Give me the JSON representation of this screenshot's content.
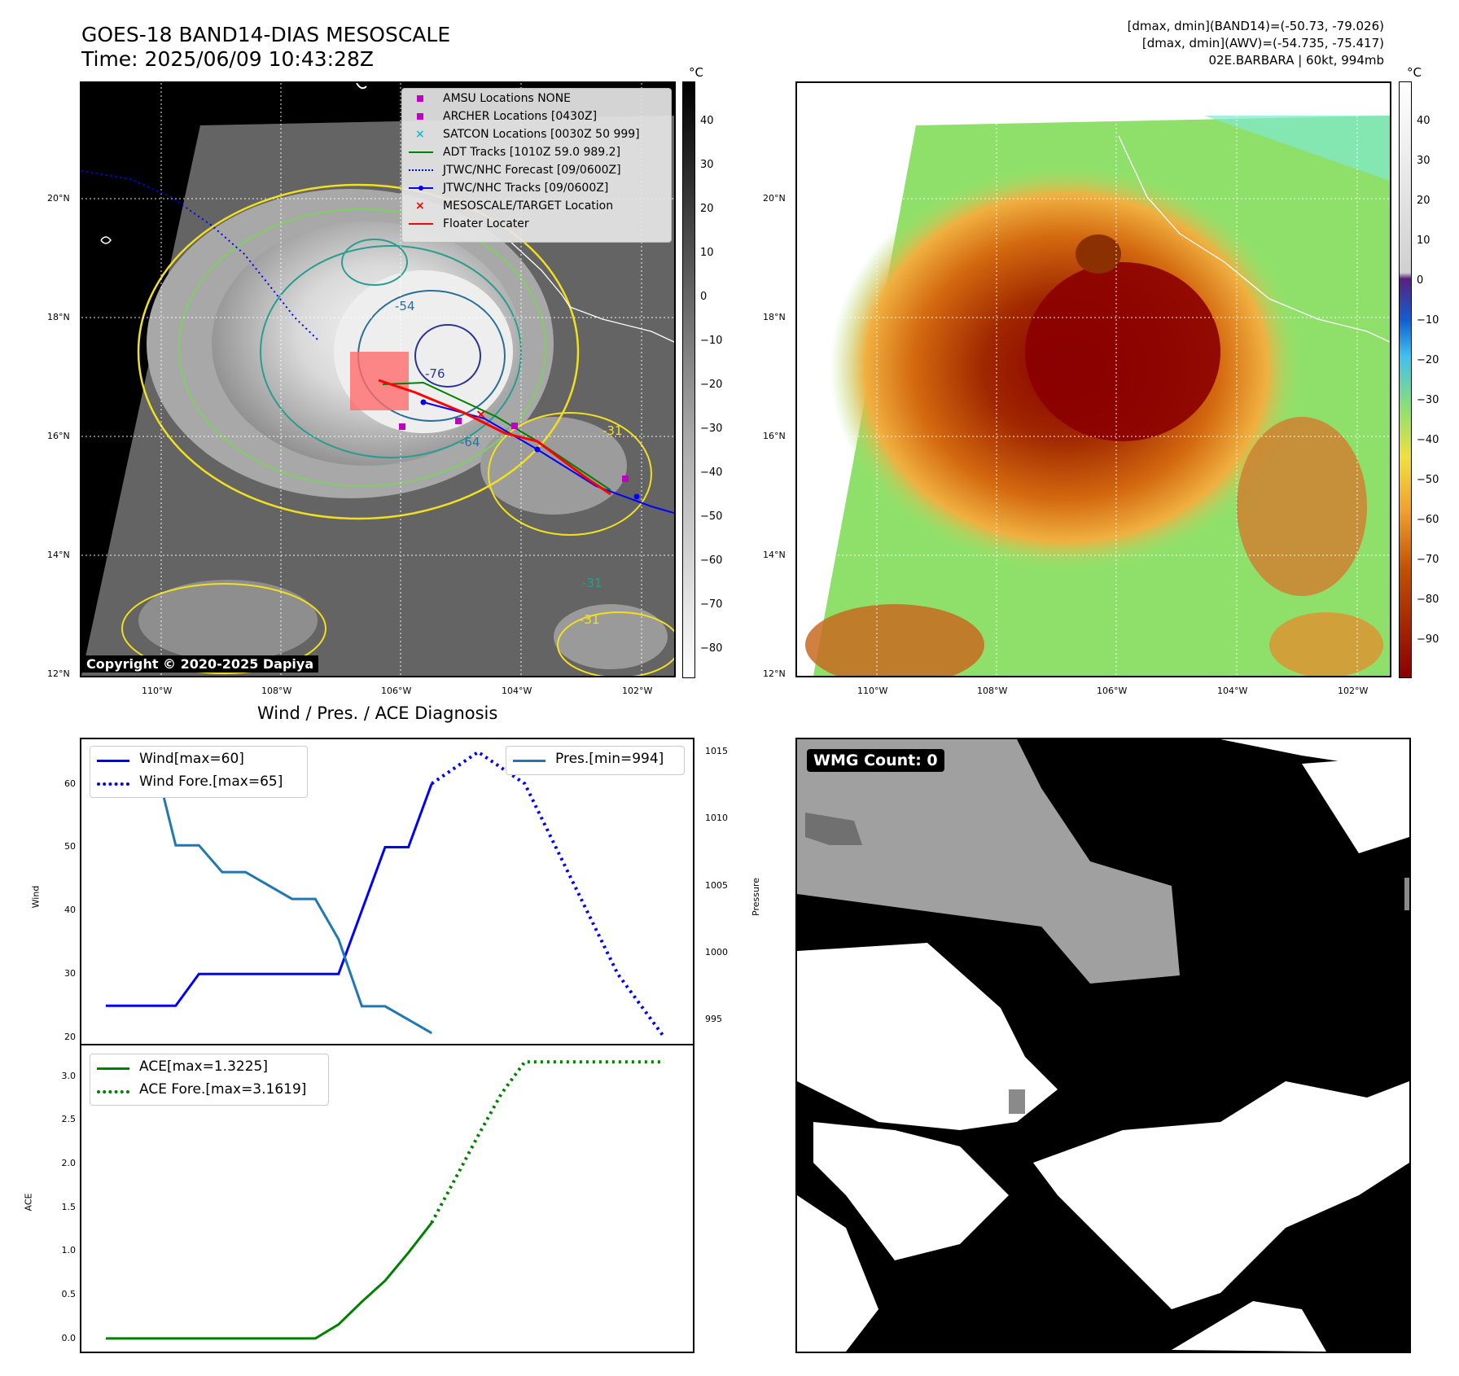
{
  "header": {
    "title_line1": "GOES-18 BAND14-DIAS MESOSCALE",
    "title_line2": "Time: 2025/06/09 10:43:28Z",
    "info_line1": "[dmax, dmin](BAND14)=(-50.73, -79.026)",
    "info_line2": "[dmax, dmin](AWV)=(-54.735, -75.417)",
    "info_line3": "02E.BARBARA | 60kt, 994mb"
  },
  "map_panel": {
    "lon_labels": [
      "110°W",
      "108°W",
      "106°W",
      "104°W",
      "102°W"
    ],
    "lat_labels": [
      "20°N",
      "18°N",
      "16°N",
      "14°N",
      "12°N"
    ],
    "copyright": "Copyright © 2020-2025 Dapiya",
    "contour_labels": [
      "-54",
      "-76",
      "-64",
      "-31",
      "-31",
      "-31"
    ],
    "legend": [
      {
        "label": "AMSU Locations NONE",
        "marker": "square",
        "color": "#c000c0"
      },
      {
        "label": "ARCHER Locations [0430Z]",
        "marker": "square",
        "color": "#c000c0"
      },
      {
        "label": "SATCON Locations [0030Z 50 999]",
        "marker": "x",
        "color": "#17becf"
      },
      {
        "label": "ADT Tracks [1010Z 59.0 989.2]",
        "marker": "line",
        "color": "#008000"
      },
      {
        "label": "JTWC/NHC Forecast [09/0600Z]",
        "marker": "dotted",
        "color": "#0000ff"
      },
      {
        "label": "JTWC/NHC Tracks [09/0600Z]",
        "marker": "line-dot",
        "color": "#0000ff"
      },
      {
        "label": "MESOSCALE/TARGET Location",
        "marker": "x",
        "color": "#ff0000"
      },
      {
        "label": "Floater Locater",
        "marker": "line",
        "color": "#ff0000"
      }
    ]
  },
  "colorbars": {
    "unit": "°C",
    "gray_ticks": [
      "40",
      "30",
      "20",
      "10",
      "0",
      "−10",
      "−20",
      "−30",
      "−40",
      "−50",
      "−60",
      "−70",
      "−80"
    ],
    "color_ticks": [
      "40",
      "30",
      "20",
      "10",
      "0",
      "−10",
      "−20",
      "−30",
      "−40",
      "−50",
      "−60",
      "−70",
      "−80",
      "−90"
    ]
  },
  "wmg_panel": {
    "badge": "WMG Count: 0"
  },
  "chart_data": [
    {
      "type": "line",
      "title": "Wind / Pres. / ACE Diagnosis",
      "ylabel": "Wind",
      "y2label": "Pressure",
      "ylim": [
        19,
        67
      ],
      "y2lim": [
        993.2,
        1015.9
      ],
      "yticks": [
        "60",
        "50",
        "40",
        "30",
        "20"
      ],
      "y2ticks": [
        "1015",
        "1010",
        "1005",
        "1000",
        "995"
      ],
      "x": [
        0,
        1,
        2,
        3,
        4,
        5,
        6,
        7,
        8,
        9,
        10,
        11,
        12,
        13,
        14,
        15,
        16,
        17,
        18,
        19,
        20,
        21,
        22,
        23,
        24
      ],
      "series": [
        {
          "name": "Wind[max=60]",
          "axis": "left",
          "color": "#0000ff",
          "style": "solid",
          "x": [
            0,
            3,
            4,
            10,
            11,
            12,
            13,
            14
          ],
          "values": [
            25,
            25,
            30,
            30,
            40,
            50,
            50,
            60
          ]
        },
        {
          "name": "Wind Fore.[max=65]",
          "axis": "left",
          "color": "#0000ff",
          "style": "dotted",
          "x": [
            14,
            16,
            18,
            20,
            22,
            24
          ],
          "values": [
            60,
            65,
            60,
            45,
            30,
            20
          ]
        },
        {
          "name": "Pres.[min=994]",
          "axis": "right",
          "color": "#1f77b4",
          "style": "solid",
          "x": [
            0,
            2,
            3,
            4,
            5,
            6,
            7,
            8,
            9,
            10,
            11,
            12,
            13,
            14
          ],
          "values": [
            1015,
            1015,
            1008,
            1008,
            1006,
            1006,
            1005,
            1004,
            1004,
            1001,
            996,
            996,
            995,
            994
          ]
        }
      ]
    },
    {
      "type": "line",
      "ylabel": "ACE",
      "ylim": [
        -0.15,
        3.35
      ],
      "yticks": [
        "3.0",
        "2.5",
        "2.0",
        "1.5",
        "1.0",
        "0.5",
        "0.0"
      ],
      "x": [
        0,
        1,
        2,
        3,
        4,
        5,
        6,
        7,
        8,
        9,
        10,
        11,
        12,
        13,
        14,
        15,
        16,
        17,
        18,
        19,
        20,
        21,
        22,
        23,
        24
      ],
      "series": [
        {
          "name": "ACE[max=1.3225]",
          "color": "#008000",
          "style": "solid",
          "x": [
            0,
            9,
            10,
            11,
            12,
            13,
            14
          ],
          "values": [
            0,
            0,
            0.16,
            0.42,
            0.66,
            0.98,
            1.3225
          ]
        },
        {
          "name": "ACE Fore.[max=3.1619]",
          "color": "#008000",
          "style": "dotted",
          "x": [
            14,
            15,
            16,
            17,
            18,
            19,
            20,
            21,
            22,
            23,
            24
          ],
          "values": [
            1.3225,
            1.82,
            2.32,
            2.8,
            3.1619,
            3.1619,
            3.1619,
            3.1619,
            3.1619,
            3.1619,
            3.1619
          ]
        }
      ]
    }
  ]
}
